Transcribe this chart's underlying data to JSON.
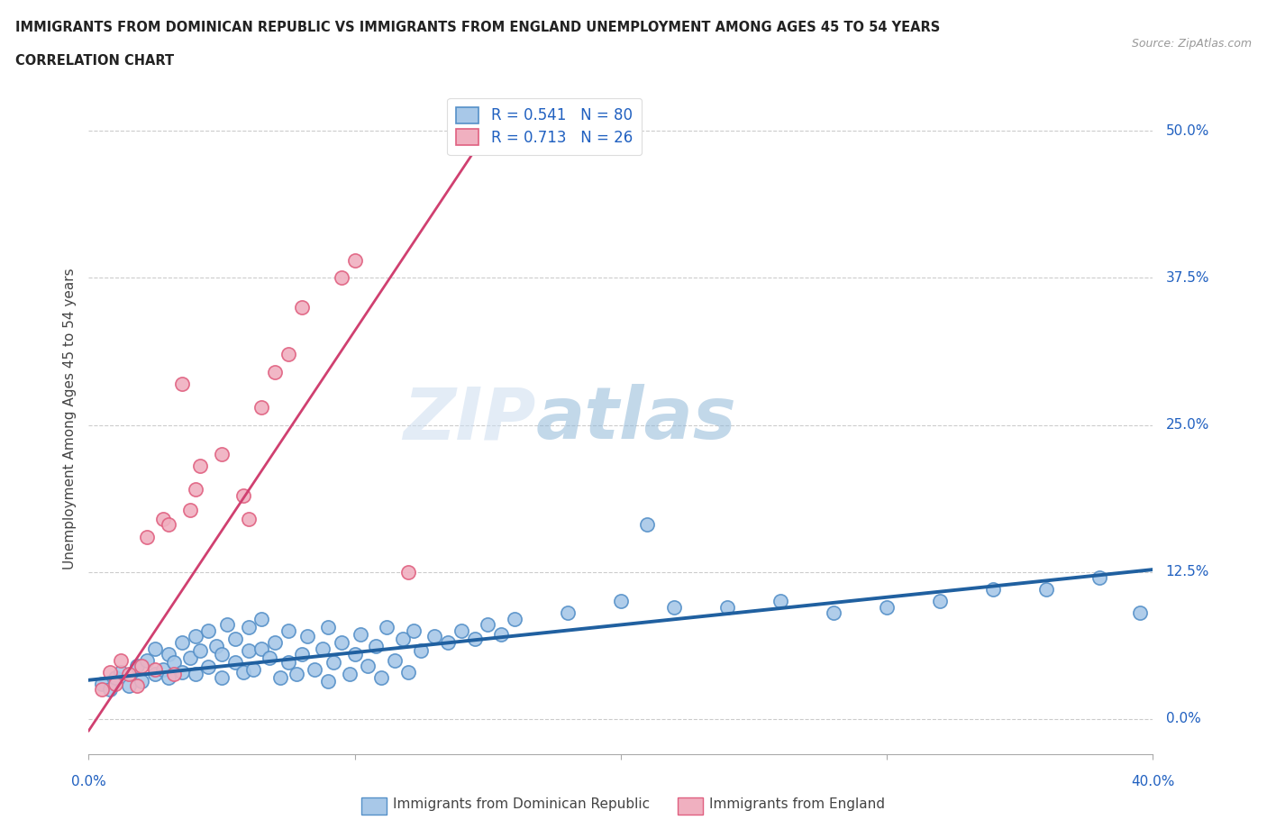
{
  "title_line1": "IMMIGRANTS FROM DOMINICAN REPUBLIC VS IMMIGRANTS FROM ENGLAND UNEMPLOYMENT AMONG AGES 45 TO 54 YEARS",
  "title_line2": "CORRELATION CHART",
  "source": "Source: ZipAtlas.com",
  "ylabel": "Unemployment Among Ages 45 to 54 years",
  "ytick_labels": [
    "0.0%",
    "12.5%",
    "25.0%",
    "37.5%",
    "50.0%"
  ],
  "ytick_values": [
    0.0,
    0.125,
    0.25,
    0.375,
    0.5
  ],
  "xlim": [
    0.0,
    0.4
  ],
  "ylim": [
    -0.03,
    0.54
  ],
  "watermark_zip": "ZIP",
  "watermark_atlas": "atlas",
  "legend_label_blue": "Immigrants from Dominican Republic",
  "legend_label_pink": "Immigrants from England",
  "legend_R_blue": "R = 0.541",
  "legend_N_blue": "N = 80",
  "legend_R_pink": "R = 0.713",
  "legend_N_pink": "N = 26",
  "blue_scatter_color": "#a8c8e8",
  "blue_edge_color": "#5590c8",
  "pink_scatter_color": "#f0b0c0",
  "pink_edge_color": "#e06080",
  "blue_line_color": "#2060a0",
  "pink_line_color": "#d04070",
  "text_blue": "#2060c0",
  "grid_color": "#cccccc",
  "scatter_blue_x": [
    0.005,
    0.008,
    0.01,
    0.012,
    0.015,
    0.018,
    0.02,
    0.022,
    0.025,
    0.025,
    0.028,
    0.03,
    0.03,
    0.032,
    0.035,
    0.035,
    0.038,
    0.04,
    0.04,
    0.042,
    0.045,
    0.045,
    0.048,
    0.05,
    0.05,
    0.052,
    0.055,
    0.055,
    0.058,
    0.06,
    0.06,
    0.062,
    0.065,
    0.065,
    0.068,
    0.07,
    0.072,
    0.075,
    0.075,
    0.078,
    0.08,
    0.082,
    0.085,
    0.088,
    0.09,
    0.09,
    0.092,
    0.095,
    0.098,
    0.1,
    0.102,
    0.105,
    0.108,
    0.11,
    0.112,
    0.115,
    0.118,
    0.12,
    0.122,
    0.125,
    0.13,
    0.135,
    0.14,
    0.145,
    0.15,
    0.155,
    0.16,
    0.18,
    0.2,
    0.21,
    0.22,
    0.24,
    0.26,
    0.28,
    0.3,
    0.32,
    0.34,
    0.36,
    0.38,
    0.395
  ],
  "scatter_blue_y": [
    0.03,
    0.025,
    0.035,
    0.04,
    0.028,
    0.045,
    0.032,
    0.05,
    0.038,
    0.06,
    0.042,
    0.035,
    0.055,
    0.048,
    0.04,
    0.065,
    0.052,
    0.038,
    0.07,
    0.058,
    0.044,
    0.075,
    0.062,
    0.035,
    0.055,
    0.08,
    0.048,
    0.068,
    0.04,
    0.058,
    0.078,
    0.042,
    0.06,
    0.085,
    0.052,
    0.065,
    0.035,
    0.048,
    0.075,
    0.038,
    0.055,
    0.07,
    0.042,
    0.06,
    0.032,
    0.078,
    0.048,
    0.065,
    0.038,
    0.055,
    0.072,
    0.045,
    0.062,
    0.035,
    0.078,
    0.05,
    0.068,
    0.04,
    0.075,
    0.058,
    0.07,
    0.065,
    0.075,
    0.068,
    0.08,
    0.072,
    0.085,
    0.09,
    0.1,
    0.165,
    0.095,
    0.095,
    0.1,
    0.09,
    0.095,
    0.1,
    0.11,
    0.11,
    0.12,
    0.09
  ],
  "scatter_pink_x": [
    0.005,
    0.008,
    0.01,
    0.012,
    0.015,
    0.018,
    0.02,
    0.022,
    0.025,
    0.028,
    0.03,
    0.032,
    0.035,
    0.038,
    0.04,
    0.042,
    0.05,
    0.058,
    0.06,
    0.065,
    0.07,
    0.075,
    0.08,
    0.095,
    0.1,
    0.12
  ],
  "scatter_pink_y": [
    0.025,
    0.04,
    0.03,
    0.05,
    0.038,
    0.028,
    0.045,
    0.155,
    0.042,
    0.17,
    0.165,
    0.038,
    0.285,
    0.178,
    0.195,
    0.215,
    0.225,
    0.19,
    0.17,
    0.265,
    0.295,
    0.31,
    0.35,
    0.375,
    0.39,
    0.125
  ],
  "blue_trend_x": [
    0.0,
    0.4
  ],
  "blue_trend_y": [
    0.033,
    0.127
  ],
  "pink_trend_x": [
    0.0,
    0.15
  ],
  "pink_trend_y": [
    -0.01,
    0.5
  ]
}
